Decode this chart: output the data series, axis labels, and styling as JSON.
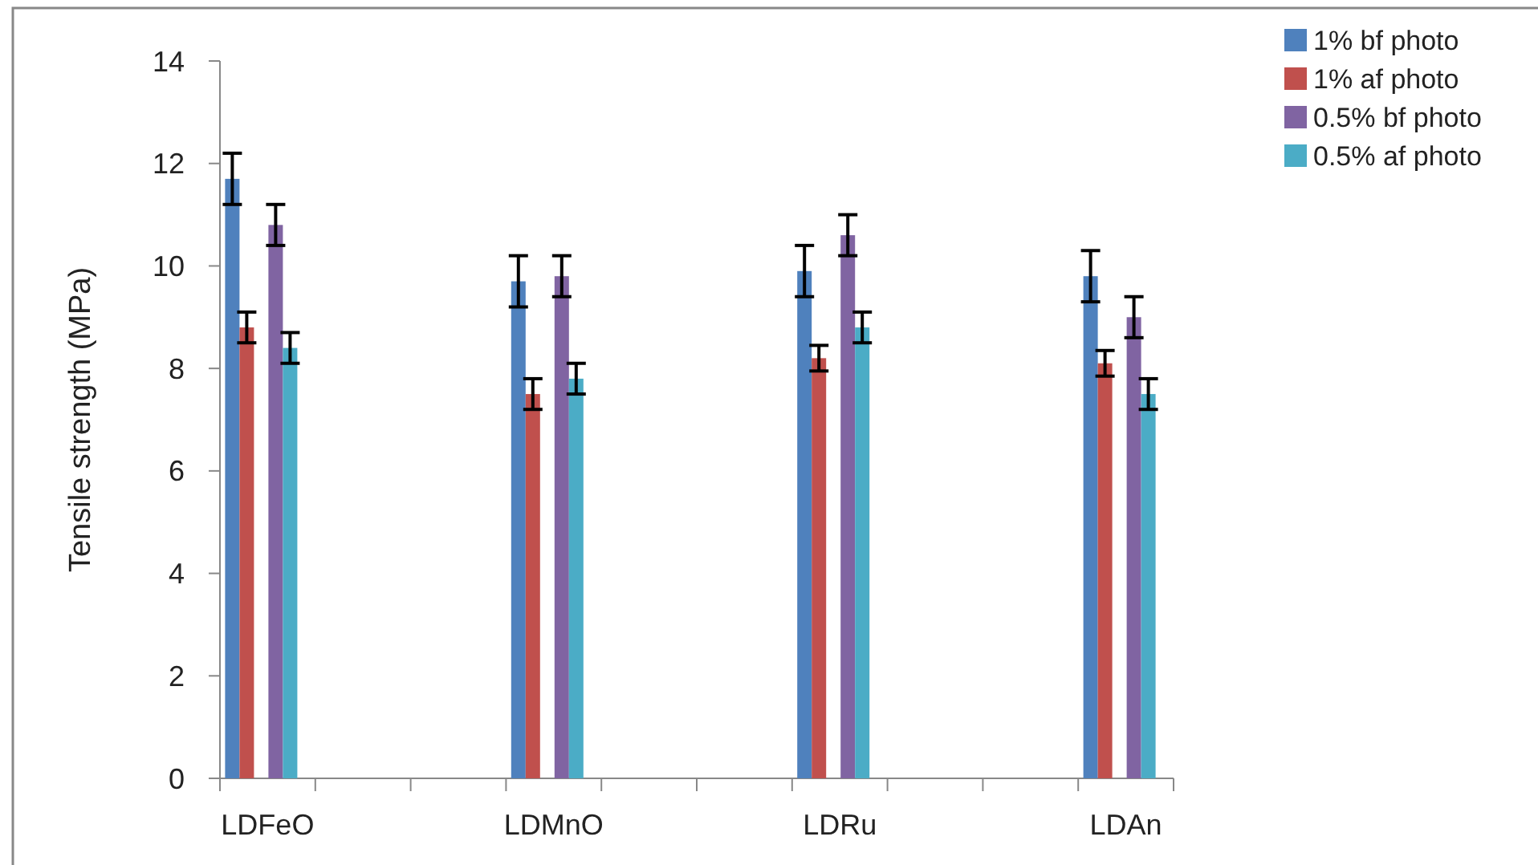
{
  "chart_data": {
    "type": "bar",
    "ylabel": "Tensile strength (MPa)",
    "categories": [
      "LDFeO",
      null,
      null,
      "LDMnO",
      null,
      null,
      "LDRu",
      null,
      null,
      "LDAn"
    ],
    "series": [
      {
        "name": "1% bf photo",
        "color": "#4f81bd",
        "values": [
          11.7,
          null,
          null,
          9.7,
          null,
          null,
          9.9,
          null,
          null,
          9.8
        ],
        "errors": [
          0.5,
          null,
          null,
          0.5,
          null,
          null,
          0.5,
          null,
          null,
          0.5
        ]
      },
      {
        "name": "1% af photo",
        "color": "#c0504d",
        "values": [
          8.8,
          null,
          null,
          7.5,
          null,
          null,
          8.2,
          null,
          null,
          8.1
        ],
        "errors": [
          0.3,
          null,
          null,
          0.3,
          null,
          null,
          0.25,
          null,
          null,
          0.25
        ]
      },
      {
        "name": "0.5% bf photo",
        "color": "#8064a2",
        "values": [
          10.8,
          null,
          null,
          9.8,
          null,
          null,
          10.6,
          null,
          null,
          9.0
        ],
        "errors": [
          0.4,
          null,
          null,
          0.4,
          null,
          null,
          0.4,
          null,
          null,
          0.4
        ]
      },
      {
        "name": "0.5% af photo",
        "color": "#4bacc6",
        "values": [
          8.4,
          null,
          null,
          7.8,
          null,
          null,
          8.8,
          null,
          null,
          7.5
        ],
        "errors": [
          0.3,
          null,
          null,
          0.3,
          null,
          null,
          0.3,
          null,
          null,
          0.3
        ]
      }
    ],
    "ylim": [
      0,
      14
    ],
    "yticks": [
      0,
      2,
      4,
      6,
      8,
      10,
      12,
      14
    ],
    "grid": false,
    "legend": "top right"
  }
}
